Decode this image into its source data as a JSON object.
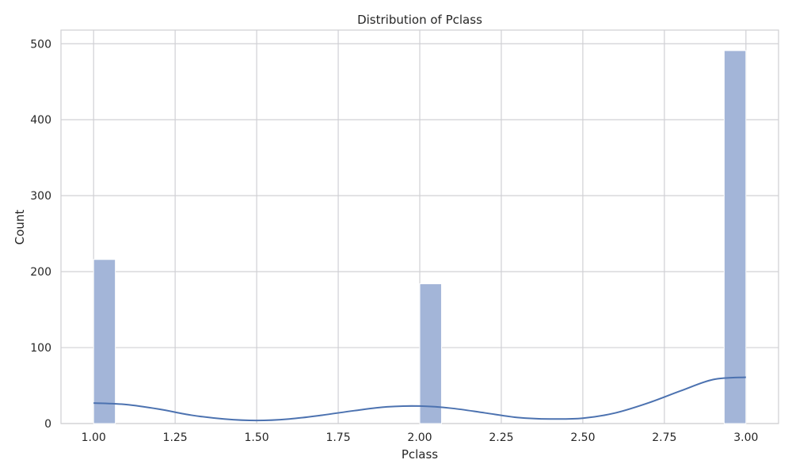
{
  "chart_data": {
    "type": "bar",
    "title": "Distribution of Pclass",
    "xlabel": "Pclass",
    "ylabel": "Count",
    "xlim": [
      0.9,
      3.1
    ],
    "ylim": [
      0,
      518
    ],
    "grid": true,
    "x_ticks": [
      "1.00",
      "1.25",
      "1.50",
      "1.75",
      "2.00",
      "2.25",
      "2.50",
      "2.75",
      "3.00"
    ],
    "y_ticks": [
      "0",
      "100",
      "200",
      "300",
      "400",
      "500"
    ],
    "bin_width": 0.0667,
    "bars": [
      {
        "x": 1.0,
        "value": 216
      },
      {
        "x": 2.0,
        "value": 184
      },
      {
        "x": 2.9333,
        "value": 491
      }
    ],
    "kde": {
      "x": [
        1.0,
        1.1,
        1.2,
        1.3,
        1.4,
        1.5,
        1.6,
        1.7,
        1.8,
        1.9,
        2.0,
        2.1,
        2.2,
        2.3,
        2.4,
        2.5,
        2.6,
        2.7,
        2.8,
        2.9,
        3.0
      ],
      "y": [
        27,
        25,
        19,
        11,
        6,
        4,
        6,
        11,
        17,
        22,
        23,
        20,
        14,
        8,
        6,
        7,
        14,
        27,
        43,
        58,
        61
      ]
    },
    "colors": {
      "bar_fill": "#a3b5d8",
      "line": "#4c72b0",
      "grid": "#d0d0d4",
      "frame": "#cfcfd3"
    }
  }
}
